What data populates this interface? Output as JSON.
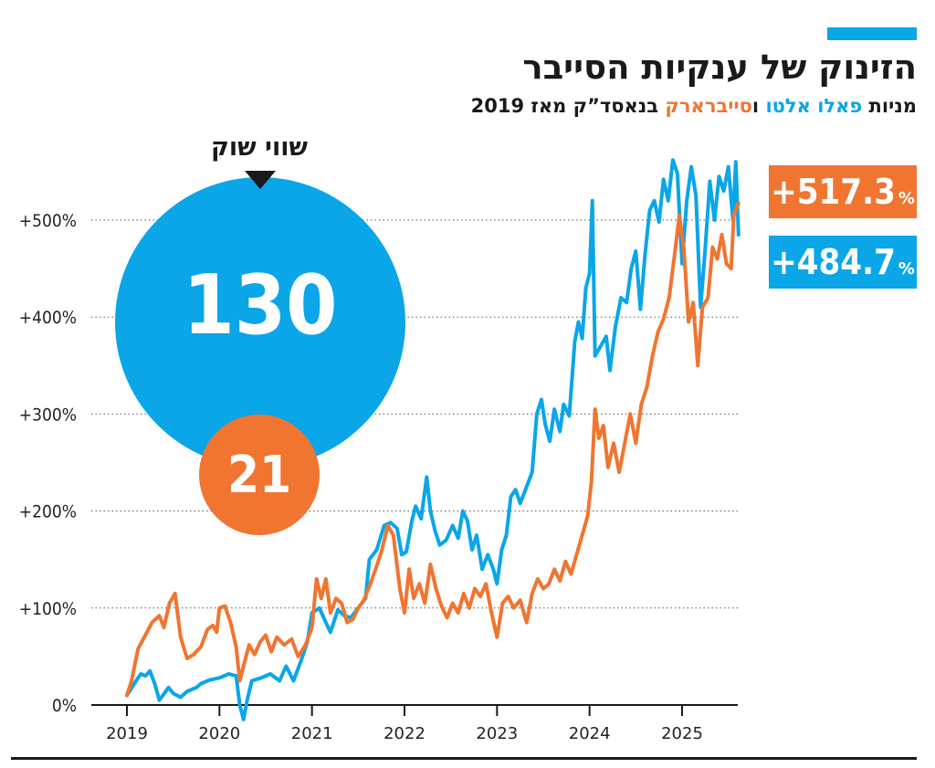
{
  "header": {
    "title": "הזינוק של ענקיות הסייבר",
    "subtitle_parts": [
      {
        "text": "מניות ",
        "color": "#1a1a1a"
      },
      {
        "text": "פאלו אלטו",
        "color": "#0aa6e8"
      },
      {
        "text": " ו",
        "color": "#1a1a1a"
      },
      {
        "text": "סייברארק",
        "color": "#f07530"
      },
      {
        "text": " בנאסד”ק מאז 2019",
        "color": "#1a1a1a"
      }
    ]
  },
  "colors": {
    "blue": "#0aa6e8",
    "orange": "#f07530",
    "accent_bar": "#0aa6e8",
    "grid": "#555555",
    "axis": "#1a1a1a"
  },
  "market_cap": {
    "label": "שווי שוק",
    "palo_alto": {
      "value": "130",
      "color": "#0aa6e8"
    },
    "cyberark": {
      "value": "21",
      "color": "#f07530"
    }
  },
  "badges": [
    {
      "value": "+517.3",
      "unit": "%",
      "color": "#f07530"
    },
    {
      "value": "+484.7",
      "unit": "%",
      "color": "#0aa6e8"
    }
  ],
  "chart_data": {
    "type": "line",
    "title": "הזינוק של ענקיות הסייבר",
    "ylabel": "",
    "xlabel": "",
    "ylim": [
      0,
      600
    ],
    "xlim": [
      2019,
      2025.65
    ],
    "y_ticks": [
      "0%",
      "+100%",
      "+200%",
      "+300%",
      "+400%",
      "+500%"
    ],
    "y_tick_values": [
      0,
      100,
      200,
      300,
      400,
      500
    ],
    "x_ticks": [
      "2019",
      "2020",
      "2021",
      "2022",
      "2023",
      "2024",
      "2025"
    ],
    "x_tick_values": [
      2019,
      2020,
      2021,
      2022,
      2023,
      2024,
      2025
    ],
    "grid": "horizontal dotted",
    "series": [
      {
        "name": "פאלו אלטו",
        "color": "#0aa6e8",
        "points": [
          [
            2019.0,
            10
          ],
          [
            2019.1,
            25
          ],
          [
            2019.15,
            32
          ],
          [
            2019.2,
            30
          ],
          [
            2019.25,
            35
          ],
          [
            2019.3,
            22
          ],
          [
            2019.35,
            5
          ],
          [
            2019.45,
            18
          ],
          [
            2019.5,
            12
          ],
          [
            2019.58,
            8
          ],
          [
            2019.65,
            14
          ],
          [
            2019.75,
            18
          ],
          [
            2019.8,
            22
          ],
          [
            2019.9,
            26
          ],
          [
            2020.0,
            28
          ],
          [
            2020.1,
            32
          ],
          [
            2020.18,
            30
          ],
          [
            2020.22,
            0
          ],
          [
            2020.26,
            -15
          ],
          [
            2020.3,
            5
          ],
          [
            2020.35,
            25
          ],
          [
            2020.45,
            28
          ],
          [
            2020.55,
            32
          ],
          [
            2020.65,
            25
          ],
          [
            2020.72,
            40
          ],
          [
            2020.8,
            25
          ],
          [
            2020.88,
            45
          ],
          [
            2020.95,
            65
          ],
          [
            2021.0,
            95
          ],
          [
            2021.08,
            100
          ],
          [
            2021.15,
            85
          ],
          [
            2021.2,
            75
          ],
          [
            2021.28,
            98
          ],
          [
            2021.35,
            92
          ],
          [
            2021.42,
            90
          ],
          [
            2021.5,
            100
          ],
          [
            2021.58,
            110
          ],
          [
            2021.62,
            150
          ],
          [
            2021.7,
            160
          ],
          [
            2021.78,
            185
          ],
          [
            2021.85,
            188
          ],
          [
            2021.92,
            182
          ],
          [
            2021.97,
            155
          ],
          [
            2022.02,
            158
          ],
          [
            2022.08,
            190
          ],
          [
            2022.12,
            205
          ],
          [
            2022.18,
            192
          ],
          [
            2022.24,
            235
          ],
          [
            2022.28,
            200
          ],
          [
            2022.33,
            180
          ],
          [
            2022.38,
            165
          ],
          [
            2022.45,
            170
          ],
          [
            2022.52,
            185
          ],
          [
            2022.58,
            172
          ],
          [
            2022.63,
            200
          ],
          [
            2022.68,
            190
          ],
          [
            2022.73,
            160
          ],
          [
            2022.78,
            175
          ],
          [
            2022.84,
            140
          ],
          [
            2022.9,
            155
          ],
          [
            2022.96,
            140
          ],
          [
            2023.0,
            125
          ],
          [
            2023.05,
            160
          ],
          [
            2023.1,
            175
          ],
          [
            2023.15,
            215
          ],
          [
            2023.2,
            222
          ],
          [
            2023.25,
            208
          ],
          [
            2023.3,
            220
          ],
          [
            2023.38,
            240
          ],
          [
            2023.43,
            300
          ],
          [
            2023.48,
            315
          ],
          [
            2023.52,
            290
          ],
          [
            2023.57,
            272
          ],
          [
            2023.62,
            305
          ],
          [
            2023.68,
            282
          ],
          [
            2023.72,
            310
          ],
          [
            2023.78,
            298
          ],
          [
            2023.84,
            375
          ],
          [
            2023.88,
            395
          ],
          [
            2023.92,
            378
          ],
          [
            2023.96,
            430
          ],
          [
            2024.0,
            445
          ],
          [
            2024.03,
            520
          ],
          [
            2024.06,
            360
          ],
          [
            2024.12,
            370
          ],
          [
            2024.18,
            380
          ],
          [
            2024.22,
            345
          ],
          [
            2024.28,
            390
          ],
          [
            2024.34,
            420
          ],
          [
            2024.4,
            415
          ],
          [
            2024.45,
            450
          ],
          [
            2024.5,
            468
          ],
          [
            2024.55,
            408
          ],
          [
            2024.6,
            465
          ],
          [
            2024.65,
            510
          ],
          [
            2024.7,
            520
          ],
          [
            2024.75,
            498
          ],
          [
            2024.8,
            542
          ],
          [
            2024.85,
            520
          ],
          [
            2024.9,
            562
          ],
          [
            2024.95,
            548
          ],
          [
            2025.0,
            455
          ],
          [
            2025.05,
            520
          ],
          [
            2025.1,
            555
          ],
          [
            2025.15,
            525
          ],
          [
            2025.2,
            410
          ],
          [
            2025.25,
            470
          ],
          [
            2025.3,
            540
          ],
          [
            2025.35,
            500
          ],
          [
            2025.4,
            545
          ],
          [
            2025.45,
            530
          ],
          [
            2025.5,
            555
          ],
          [
            2025.55,
            500
          ],
          [
            2025.58,
            560
          ],
          [
            2025.61,
            484.7
          ]
        ]
      },
      {
        "name": "סייברארק",
        "color": "#f07530",
        "points": [
          [
            2019.0,
            10
          ],
          [
            2019.05,
            25
          ],
          [
            2019.12,
            58
          ],
          [
            2019.2,
            72
          ],
          [
            2019.27,
            85
          ],
          [
            2019.35,
            92
          ],
          [
            2019.4,
            80
          ],
          [
            2019.46,
            105
          ],
          [
            2019.52,
            115
          ],
          [
            2019.58,
            70
          ],
          [
            2019.65,
            48
          ],
          [
            2019.72,
            52
          ],
          [
            2019.8,
            60
          ],
          [
            2019.87,
            78
          ],
          [
            2019.93,
            82
          ],
          [
            2019.97,
            75
          ],
          [
            2020.0,
            100
          ],
          [
            2020.06,
            102
          ],
          [
            2020.12,
            85
          ],
          [
            2020.18,
            60
          ],
          [
            2020.22,
            25
          ],
          [
            2020.26,
            40
          ],
          [
            2020.32,
            62
          ],
          [
            2020.38,
            52
          ],
          [
            2020.44,
            65
          ],
          [
            2020.5,
            72
          ],
          [
            2020.56,
            55
          ],
          [
            2020.62,
            70
          ],
          [
            2020.7,
            62
          ],
          [
            2020.78,
            68
          ],
          [
            2020.85,
            50
          ],
          [
            2020.93,
            62
          ],
          [
            2021.0,
            80
          ],
          [
            2021.05,
            130
          ],
          [
            2021.1,
            110
          ],
          [
            2021.15,
            130
          ],
          [
            2021.2,
            95
          ],
          [
            2021.26,
            110
          ],
          [
            2021.32,
            105
          ],
          [
            2021.38,
            85
          ],
          [
            2021.44,
            88
          ],
          [
            2021.5,
            100
          ],
          [
            2021.56,
            108
          ],
          [
            2021.62,
            122
          ],
          [
            2021.68,
            138
          ],
          [
            2021.75,
            158
          ],
          [
            2021.82,
            185
          ],
          [
            2021.88,
            175
          ],
          [
            2021.95,
            120
          ],
          [
            2022.0,
            95
          ],
          [
            2022.05,
            140
          ],
          [
            2022.1,
            110
          ],
          [
            2022.16,
            125
          ],
          [
            2022.22,
            105
          ],
          [
            2022.28,
            145
          ],
          [
            2022.34,
            120
          ],
          [
            2022.4,
            102
          ],
          [
            2022.46,
            90
          ],
          [
            2022.52,
            105
          ],
          [
            2022.58,
            95
          ],
          [
            2022.64,
            115
          ],
          [
            2022.7,
            100
          ],
          [
            2022.76,
            120
          ],
          [
            2022.82,
            112
          ],
          [
            2022.88,
            125
          ],
          [
            2022.94,
            95
          ],
          [
            2023.0,
            70
          ],
          [
            2023.06,
            105
          ],
          [
            2023.12,
            112
          ],
          [
            2023.18,
            100
          ],
          [
            2023.25,
            108
          ],
          [
            2023.32,
            85
          ],
          [
            2023.38,
            115
          ],
          [
            2023.44,
            130
          ],
          [
            2023.5,
            120
          ],
          [
            2023.56,
            125
          ],
          [
            2023.62,
            140
          ],
          [
            2023.68,
            128
          ],
          [
            2023.74,
            148
          ],
          [
            2023.8,
            135
          ],
          [
            2023.86,
            155
          ],
          [
            2023.92,
            175
          ],
          [
            2023.98,
            195
          ],
          [
            2024.02,
            230
          ],
          [
            2024.06,
            305
          ],
          [
            2024.1,
            275
          ],
          [
            2024.15,
            288
          ],
          [
            2024.2,
            245
          ],
          [
            2024.26,
            270
          ],
          [
            2024.32,
            240
          ],
          [
            2024.38,
            270
          ],
          [
            2024.44,
            300
          ],
          [
            2024.5,
            270
          ],
          [
            2024.56,
            310
          ],
          [
            2024.62,
            328
          ],
          [
            2024.68,
            360
          ],
          [
            2024.74,
            385
          ],
          [
            2024.8,
            398
          ],
          [
            2024.86,
            420
          ],
          [
            2024.92,
            465
          ],
          [
            2024.97,
            505
          ],
          [
            2025.02,
            470
          ],
          [
            2025.07,
            395
          ],
          [
            2025.12,
            415
          ],
          [
            2025.17,
            350
          ],
          [
            2025.22,
            410
          ],
          [
            2025.28,
            420
          ],
          [
            2025.33,
            472
          ],
          [
            2025.38,
            460
          ],
          [
            2025.43,
            485
          ],
          [
            2025.48,
            455
          ],
          [
            2025.53,
            450
          ],
          [
            2025.56,
            505
          ],
          [
            2025.61,
            517.3
          ]
        ]
      }
    ]
  }
}
